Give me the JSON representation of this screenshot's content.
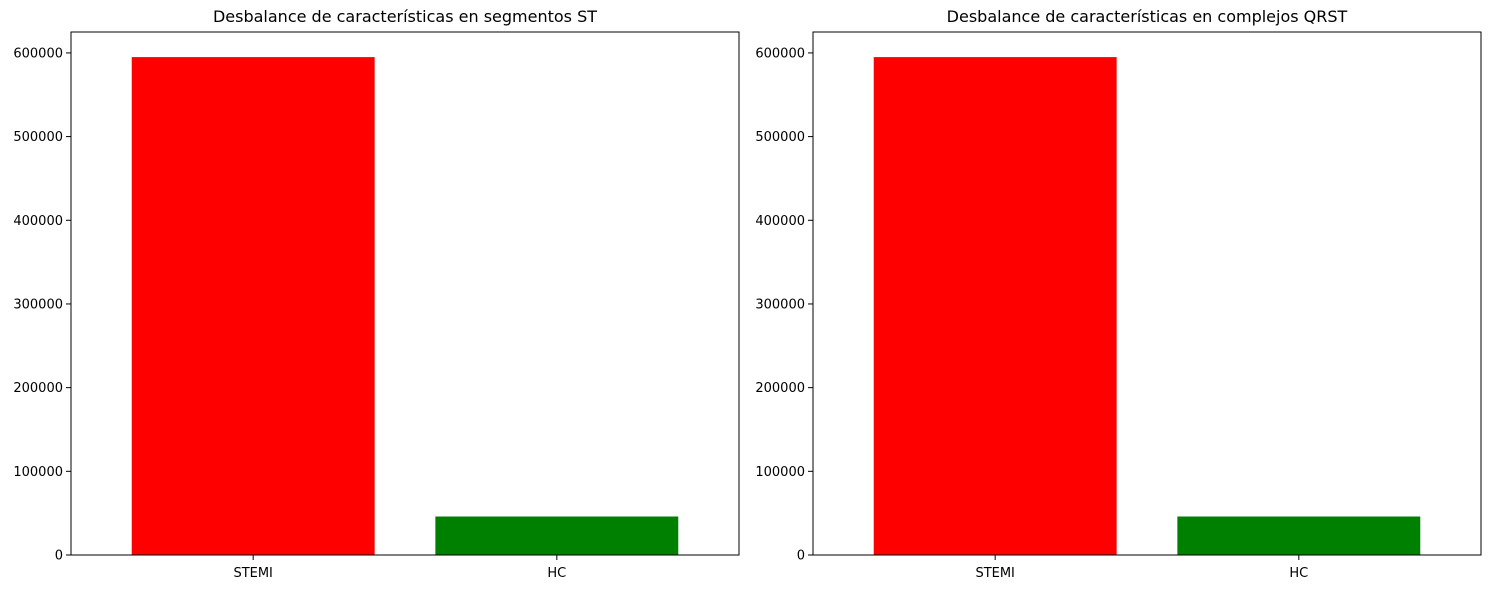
{
  "chart_data": [
    {
      "type": "bar",
      "title": "Desbalance de características en segmentos ST",
      "xlabel": "",
      "ylabel": "",
      "categories": [
        "STEMI",
        "HC"
      ],
      "values": [
        595000,
        46000
      ],
      "colors": [
        "#ff0000",
        "#008000"
      ],
      "ylim": [
        0,
        625000
      ],
      "yticks": [
        0,
        100000,
        200000,
        300000,
        400000,
        500000,
        600000
      ],
      "ytick_labels": [
        "0",
        "100000",
        "200000",
        "300000",
        "400000",
        "500000",
        "600000"
      ],
      "grid": false,
      "legend": "none"
    },
    {
      "type": "bar",
      "title": "Desbalance de características en complejos QRST",
      "xlabel": "",
      "ylabel": "",
      "categories": [
        "STEMI",
        "HC"
      ],
      "values": [
        595000,
        46000
      ],
      "colors": [
        "#ff0000",
        "#008000"
      ],
      "ylim": [
        0,
        625000
      ],
      "yticks": [
        0,
        100000,
        200000,
        300000,
        400000,
        500000,
        600000
      ],
      "ytick_labels": [
        "0",
        "100000",
        "200000",
        "300000",
        "400000",
        "500000",
        "600000"
      ],
      "grid": false,
      "legend": "none"
    }
  ]
}
